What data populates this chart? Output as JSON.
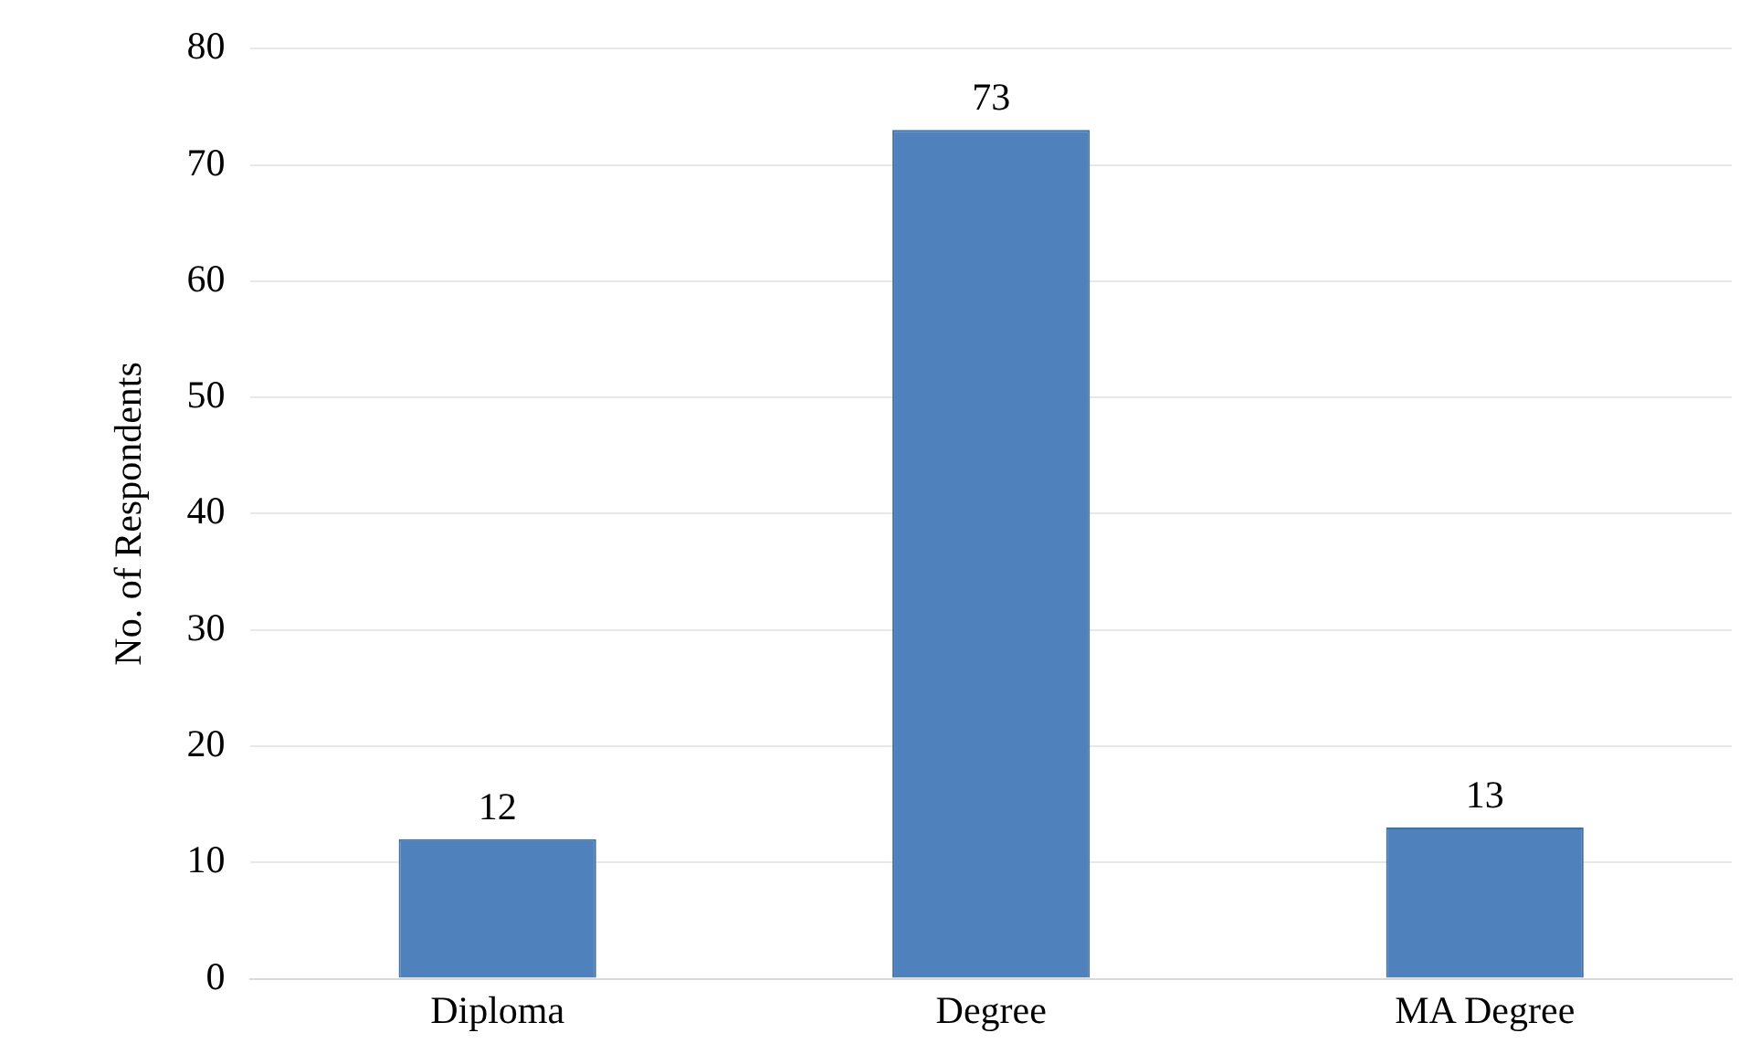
{
  "chart_data": {
    "type": "bar",
    "ylabel": "No. of Respondents",
    "categories": [
      "Diploma",
      "Degree",
      "MA Degree"
    ],
    "values": [
      12,
      73,
      13
    ],
    "color": "#4f81bd",
    "ylim": [
      0,
      80
    ],
    "yticks": [
      0,
      10,
      20,
      30,
      40,
      50,
      60,
      70,
      80
    ],
    "grid": "y",
    "data_labels": true,
    "legend": false
  }
}
